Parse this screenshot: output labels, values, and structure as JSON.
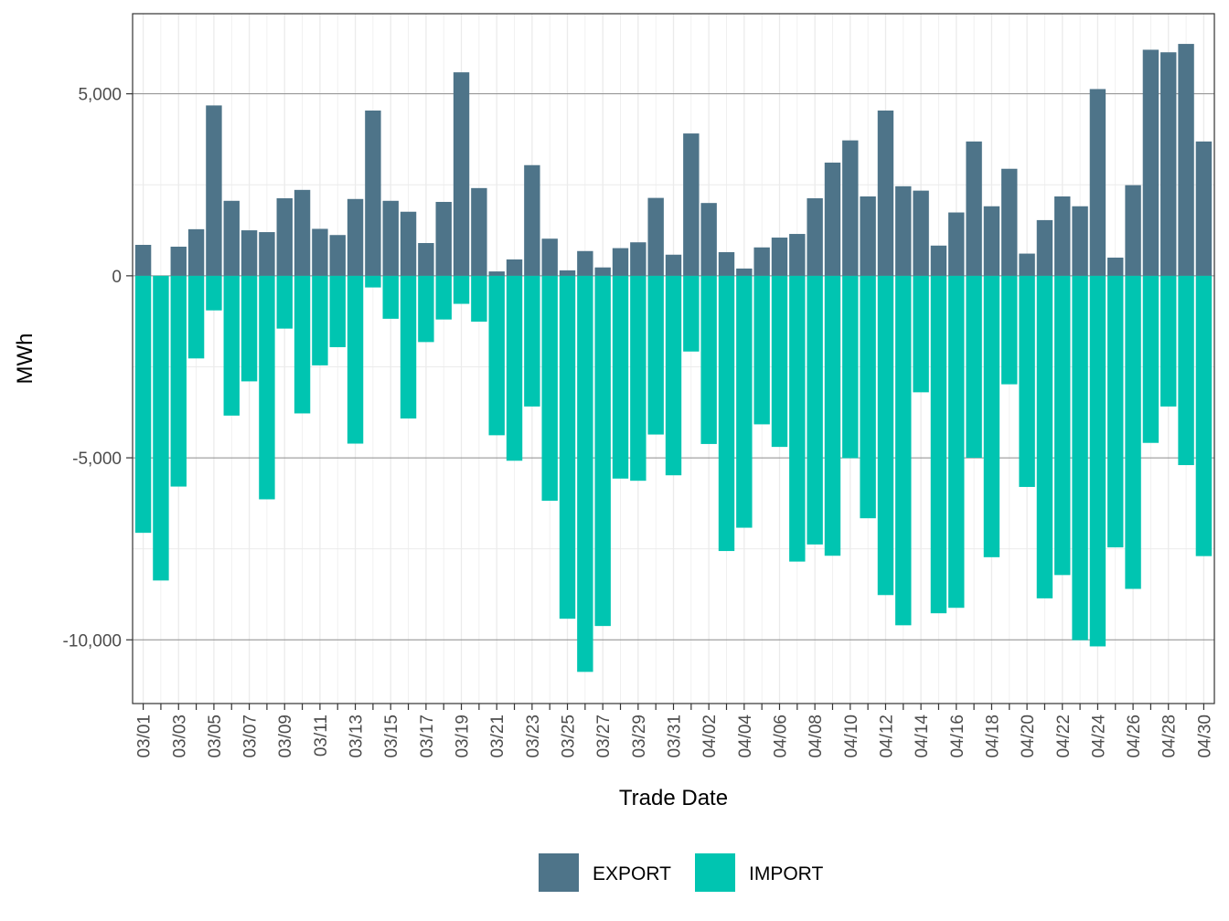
{
  "chart_data": {
    "type": "bar",
    "stacked": true,
    "title": "",
    "xlabel": "Trade Date",
    "ylabel": "MWh",
    "ylim": [
      -11750,
      7200
    ],
    "yticks": [
      -10000,
      -5000,
      0,
      5000
    ],
    "ytick_labels": [
      "-10,000",
      "-5,000",
      "0",
      "5,000"
    ],
    "grid": true,
    "legend_position": "bottom",
    "colors": {
      "EXPORT": "#4e7489",
      "IMPORT": "#00c5b1"
    },
    "categories": [
      "03/01",
      "03/02",
      "03/03",
      "03/04",
      "03/05",
      "03/06",
      "03/07",
      "03/08",
      "03/09",
      "03/10",
      "03/11",
      "03/12",
      "03/13",
      "03/14",
      "03/15",
      "03/16",
      "03/17",
      "03/18",
      "03/19",
      "03/20",
      "03/21",
      "03/22",
      "03/23",
      "03/24",
      "03/25",
      "03/26",
      "03/27",
      "03/28",
      "03/29",
      "03/30",
      "03/31",
      "04/01",
      "04/02",
      "04/03",
      "04/04",
      "04/05",
      "04/06",
      "04/07",
      "04/08",
      "04/09",
      "04/10",
      "04/11",
      "04/12",
      "04/13",
      "04/14",
      "04/15",
      "04/16",
      "04/17",
      "04/18",
      "04/19",
      "04/20",
      "04/21",
      "04/22",
      "04/23",
      "04/24",
      "04/25",
      "04/26",
      "04/27",
      "04/28",
      "04/29",
      "04/30"
    ],
    "series": [
      {
        "name": "EXPORT",
        "values": [
          850,
          0,
          800,
          1280,
          4680,
          2060,
          1250,
          1200,
          2130,
          2360,
          1290,
          1120,
          2110,
          4540,
          2060,
          1760,
          900,
          2030,
          5590,
          2410,
          120,
          450,
          3040,
          1020,
          150,
          680,
          230,
          760,
          920,
          2140,
          580,
          3910,
          2000,
          650,
          200,
          780,
          1050,
          1150,
          2130,
          3110,
          3720,
          2180,
          4540,
          2460,
          2340,
          830,
          1740,
          3690,
          1910,
          2940,
          610,
          1530,
          2180,
          1910,
          5130,
          500,
          2490,
          6210,
          6140,
          6370,
          3690
        ]
      },
      {
        "name": "IMPORT",
        "values": [
          -7060,
          -8370,
          -5790,
          -2270,
          -950,
          -3840,
          -2900,
          -6140,
          -1450,
          -3780,
          -2460,
          -1960,
          -4610,
          -320,
          -1180,
          -3920,
          -1820,
          -1200,
          -770,
          -1260,
          -4380,
          -5080,
          -3590,
          -6180,
          -9420,
          -10880,
          -9620,
          -5570,
          -5630,
          -4360,
          -5480,
          -2080,
          -4620,
          -7560,
          -6920,
          -4080,
          -4700,
          -7850,
          -7380,
          -7690,
          -5010,
          -6660,
          -8770,
          -9600,
          -3200,
          -9270,
          -9120,
          -5000,
          -7730,
          -2980,
          -5800,
          -8860,
          -8220,
          -10010,
          -10180,
          -7460,
          -8600,
          -4590,
          -3590,
          -5200,
          -7700
        ]
      }
    ]
  }
}
